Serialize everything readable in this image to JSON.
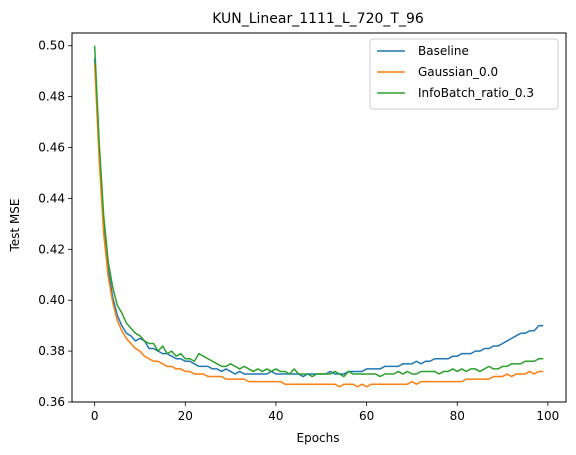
{
  "chart_data": {
    "type": "line",
    "title": "KUN_Linear_1111_L_720_T_96",
    "xlabel": "Epochs",
    "ylabel": "Test MSE",
    "xlim": [
      -5,
      104
    ],
    "ylim": [
      0.36,
      0.505
    ],
    "xticks": [
      0,
      20,
      40,
      60,
      80,
      100
    ],
    "yticks": [
      0.36,
      0.38,
      0.4,
      0.42,
      0.44,
      0.46,
      0.48,
      0.5
    ],
    "xtick_labels": [
      "0",
      "20",
      "40",
      "60",
      "80",
      "100"
    ],
    "ytick_labels": [
      "0.36",
      "0.38",
      "0.40",
      "0.42",
      "0.44",
      "0.46",
      "0.48",
      "0.50"
    ],
    "grid": false,
    "legend_position": "top-right",
    "series": [
      {
        "name": "Baseline",
        "color": "#1f77b4",
        "x": [
          0,
          1,
          2,
          3,
          4,
          5,
          6,
          7,
          8,
          9,
          10,
          11,
          12,
          13,
          14,
          15,
          16,
          17,
          18,
          19,
          20,
          21,
          22,
          23,
          24,
          25,
          26,
          27,
          28,
          29,
          30,
          31,
          32,
          33,
          34,
          35,
          36,
          37,
          38,
          39,
          40,
          41,
          42,
          43,
          44,
          45,
          46,
          47,
          48,
          49,
          50,
          51,
          52,
          53,
          54,
          55,
          56,
          57,
          58,
          59,
          60,
          61,
          62,
          63,
          64,
          65,
          66,
          67,
          68,
          69,
          70,
          71,
          72,
          73,
          74,
          75,
          76,
          77,
          78,
          79,
          80,
          81,
          82,
          83,
          84,
          85,
          86,
          87,
          88,
          89,
          90,
          91,
          92,
          93,
          94,
          95,
          96,
          97,
          98,
          99
        ],
        "values": [
          0.495,
          0.458,
          0.43,
          0.412,
          0.401,
          0.394,
          0.39,
          0.387,
          0.386,
          0.384,
          0.385,
          0.384,
          0.381,
          0.381,
          0.38,
          0.379,
          0.379,
          0.378,
          0.377,
          0.377,
          0.376,
          0.376,
          0.375,
          0.374,
          0.374,
          0.374,
          0.373,
          0.373,
          0.372,
          0.373,
          0.372,
          0.371,
          0.372,
          0.371,
          0.371,
          0.371,
          0.371,
          0.371,
          0.371,
          0.372,
          0.371,
          0.371,
          0.371,
          0.371,
          0.371,
          0.371,
          0.37,
          0.371,
          0.371,
          0.371,
          0.371,
          0.371,
          0.372,
          0.371,
          0.371,
          0.371,
          0.372,
          0.372,
          0.372,
          0.372,
          0.373,
          0.373,
          0.373,
          0.373,
          0.374,
          0.374,
          0.374,
          0.374,
          0.375,
          0.375,
          0.375,
          0.376,
          0.375,
          0.376,
          0.376,
          0.377,
          0.377,
          0.377,
          0.377,
          0.378,
          0.378,
          0.379,
          0.379,
          0.379,
          0.38,
          0.38,
          0.381,
          0.381,
          0.382,
          0.382,
          0.383,
          0.384,
          0.385,
          0.386,
          0.387,
          0.387,
          0.388,
          0.388,
          0.39,
          0.39
        ]
      },
      {
        "name": "Gaussian_0.0",
        "color": "#ff7f0e",
        "x": [
          0,
          1,
          2,
          3,
          4,
          5,
          6,
          7,
          8,
          9,
          10,
          11,
          12,
          13,
          14,
          15,
          16,
          17,
          18,
          19,
          20,
          21,
          22,
          23,
          24,
          25,
          26,
          27,
          28,
          29,
          30,
          31,
          32,
          33,
          34,
          35,
          36,
          37,
          38,
          39,
          40,
          41,
          42,
          43,
          44,
          45,
          46,
          47,
          48,
          49,
          50,
          51,
          52,
          53,
          54,
          55,
          56,
          57,
          58,
          59,
          60,
          61,
          62,
          63,
          64,
          65,
          66,
          67,
          68,
          69,
          70,
          71,
          72,
          73,
          74,
          75,
          76,
          77,
          78,
          79,
          80,
          81,
          82,
          83,
          84,
          85,
          86,
          87,
          88,
          89,
          90,
          91,
          92,
          93,
          94,
          95,
          96,
          97,
          98,
          99
        ],
        "values": [
          0.493,
          0.455,
          0.426,
          0.409,
          0.399,
          0.392,
          0.388,
          0.385,
          0.383,
          0.381,
          0.38,
          0.378,
          0.377,
          0.376,
          0.376,
          0.375,
          0.374,
          0.374,
          0.373,
          0.373,
          0.372,
          0.372,
          0.371,
          0.371,
          0.371,
          0.37,
          0.37,
          0.37,
          0.37,
          0.369,
          0.369,
          0.369,
          0.369,
          0.369,
          0.368,
          0.368,
          0.368,
          0.368,
          0.368,
          0.368,
          0.368,
          0.368,
          0.367,
          0.367,
          0.367,
          0.367,
          0.367,
          0.367,
          0.367,
          0.367,
          0.367,
          0.367,
          0.367,
          0.367,
          0.366,
          0.367,
          0.367,
          0.367,
          0.366,
          0.367,
          0.366,
          0.367,
          0.367,
          0.367,
          0.367,
          0.367,
          0.367,
          0.367,
          0.367,
          0.367,
          0.368,
          0.367,
          0.368,
          0.368,
          0.368,
          0.368,
          0.368,
          0.368,
          0.368,
          0.368,
          0.368,
          0.368,
          0.369,
          0.369,
          0.369,
          0.369,
          0.369,
          0.369,
          0.37,
          0.37,
          0.37,
          0.371,
          0.37,
          0.371,
          0.371,
          0.371,
          0.372,
          0.371,
          0.372,
          0.372
        ]
      },
      {
        "name": "InfoBatch_ratio_0.3",
        "color": "#2ca02c",
        "x": [
          0,
          1,
          2,
          3,
          4,
          5,
          6,
          7,
          8,
          9,
          10,
          11,
          12,
          13,
          14,
          15,
          16,
          17,
          18,
          19,
          20,
          21,
          22,
          23,
          24,
          25,
          26,
          27,
          28,
          29,
          30,
          31,
          32,
          33,
          34,
          35,
          36,
          37,
          38,
          39,
          40,
          41,
          42,
          43,
          44,
          45,
          46,
          47,
          48,
          49,
          50,
          51,
          52,
          53,
          54,
          55,
          56,
          57,
          58,
          59,
          60,
          61,
          62,
          63,
          64,
          65,
          66,
          67,
          68,
          69,
          70,
          71,
          72,
          73,
          74,
          75,
          76,
          77,
          78,
          79,
          80,
          81,
          82,
          83,
          84,
          85,
          86,
          87,
          88,
          89,
          90,
          91,
          92,
          93,
          94,
          95,
          96,
          97,
          98,
          99
        ],
        "values": [
          0.5,
          0.462,
          0.433,
          0.415,
          0.405,
          0.398,
          0.395,
          0.391,
          0.389,
          0.387,
          0.386,
          0.384,
          0.383,
          0.383,
          0.38,
          0.382,
          0.379,
          0.38,
          0.378,
          0.379,
          0.377,
          0.377,
          0.376,
          0.379,
          0.378,
          0.377,
          0.376,
          0.375,
          0.374,
          0.374,
          0.375,
          0.374,
          0.373,
          0.374,
          0.373,
          0.372,
          0.373,
          0.372,
          0.373,
          0.372,
          0.373,
          0.372,
          0.372,
          0.371,
          0.373,
          0.371,
          0.371,
          0.371,
          0.37,
          0.371,
          0.371,
          0.371,
          0.371,
          0.372,
          0.371,
          0.37,
          0.372,
          0.371,
          0.371,
          0.371,
          0.371,
          0.371,
          0.371,
          0.37,
          0.371,
          0.371,
          0.371,
          0.372,
          0.371,
          0.372,
          0.371,
          0.371,
          0.372,
          0.372,
          0.372,
          0.372,
          0.371,
          0.372,
          0.372,
          0.373,
          0.372,
          0.373,
          0.372,
          0.373,
          0.373,
          0.372,
          0.373,
          0.374,
          0.373,
          0.373,
          0.374,
          0.374,
          0.375,
          0.375,
          0.375,
          0.376,
          0.376,
          0.376,
          0.377,
          0.377
        ]
      }
    ]
  }
}
